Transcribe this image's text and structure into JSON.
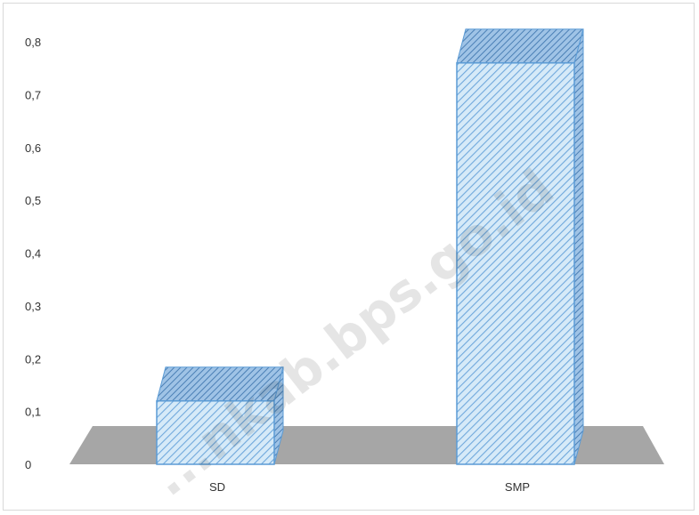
{
  "chart_data": {
    "type": "bar",
    "style": "3d-column-hatched",
    "categories": [
      "SD",
      "SMP"
    ],
    "values": [
      0.12,
      0.76
    ],
    "yticks": [
      "0",
      "0,1",
      "0,2",
      "0,3",
      "0,4",
      "0,5",
      "0,6",
      "0,7",
      "0,8"
    ],
    "ylim": [
      0,
      0.8
    ],
    "title": "",
    "xlabel": "",
    "ylabel": "",
    "grid": false,
    "legend": "none",
    "colors": {
      "bar_fill": "#d6eaf8",
      "bar_hatch": "#6fa8dc",
      "bar_edge": "#5b9bd5",
      "floor": "#a6a6a6"
    }
  },
  "watermark": "...nkab.bps.go.id"
}
